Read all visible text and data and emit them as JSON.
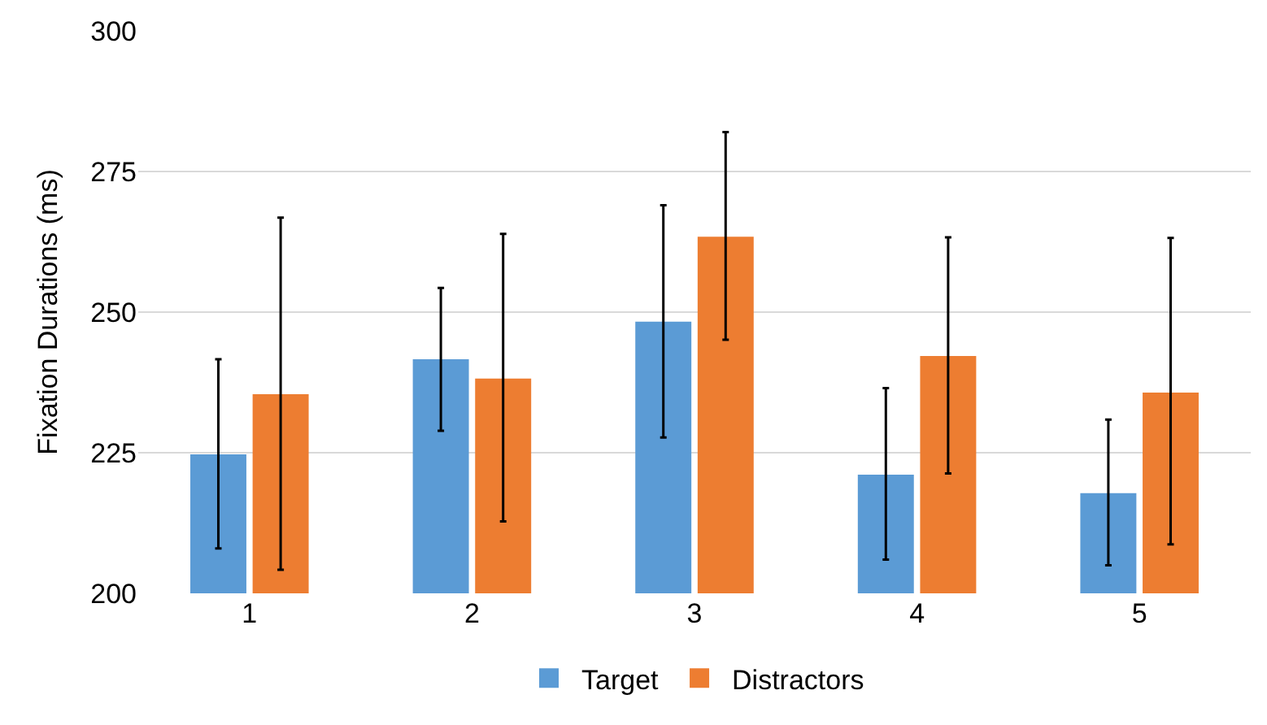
{
  "chart_data": {
    "type": "bar",
    "ylabel": "Fixation Durations (ms)",
    "categories": [
      "1",
      "2",
      "3",
      "4",
      "5"
    ],
    "series": [
      {
        "name": "Target",
        "color": "#5b9bd5",
        "values": [
          224.7,
          241.6,
          248.3,
          221.1,
          217.8
        ],
        "errors": [
          [
            208.0,
            241.6
          ],
          [
            228.9,
            254.3
          ],
          [
            227.7,
            269.0
          ],
          [
            206.0,
            236.5
          ],
          [
            205.0,
            230.9
          ]
        ]
      },
      {
        "name": "Distractors",
        "color": "#ed7d31",
        "values": [
          235.4,
          238.2,
          263.4,
          242.2,
          235.7
        ],
        "errors": [
          [
            204.2,
            266.8
          ],
          [
            212.8,
            263.9
          ],
          [
            245.1,
            282.0
          ],
          [
            221.3,
            263.3
          ],
          [
            208.7,
            263.2
          ]
        ]
      }
    ],
    "ylim": [
      200,
      300
    ],
    "yticks": [
      200,
      225,
      250,
      275,
      300
    ],
    "grid": "y",
    "legend": "bottom"
  }
}
